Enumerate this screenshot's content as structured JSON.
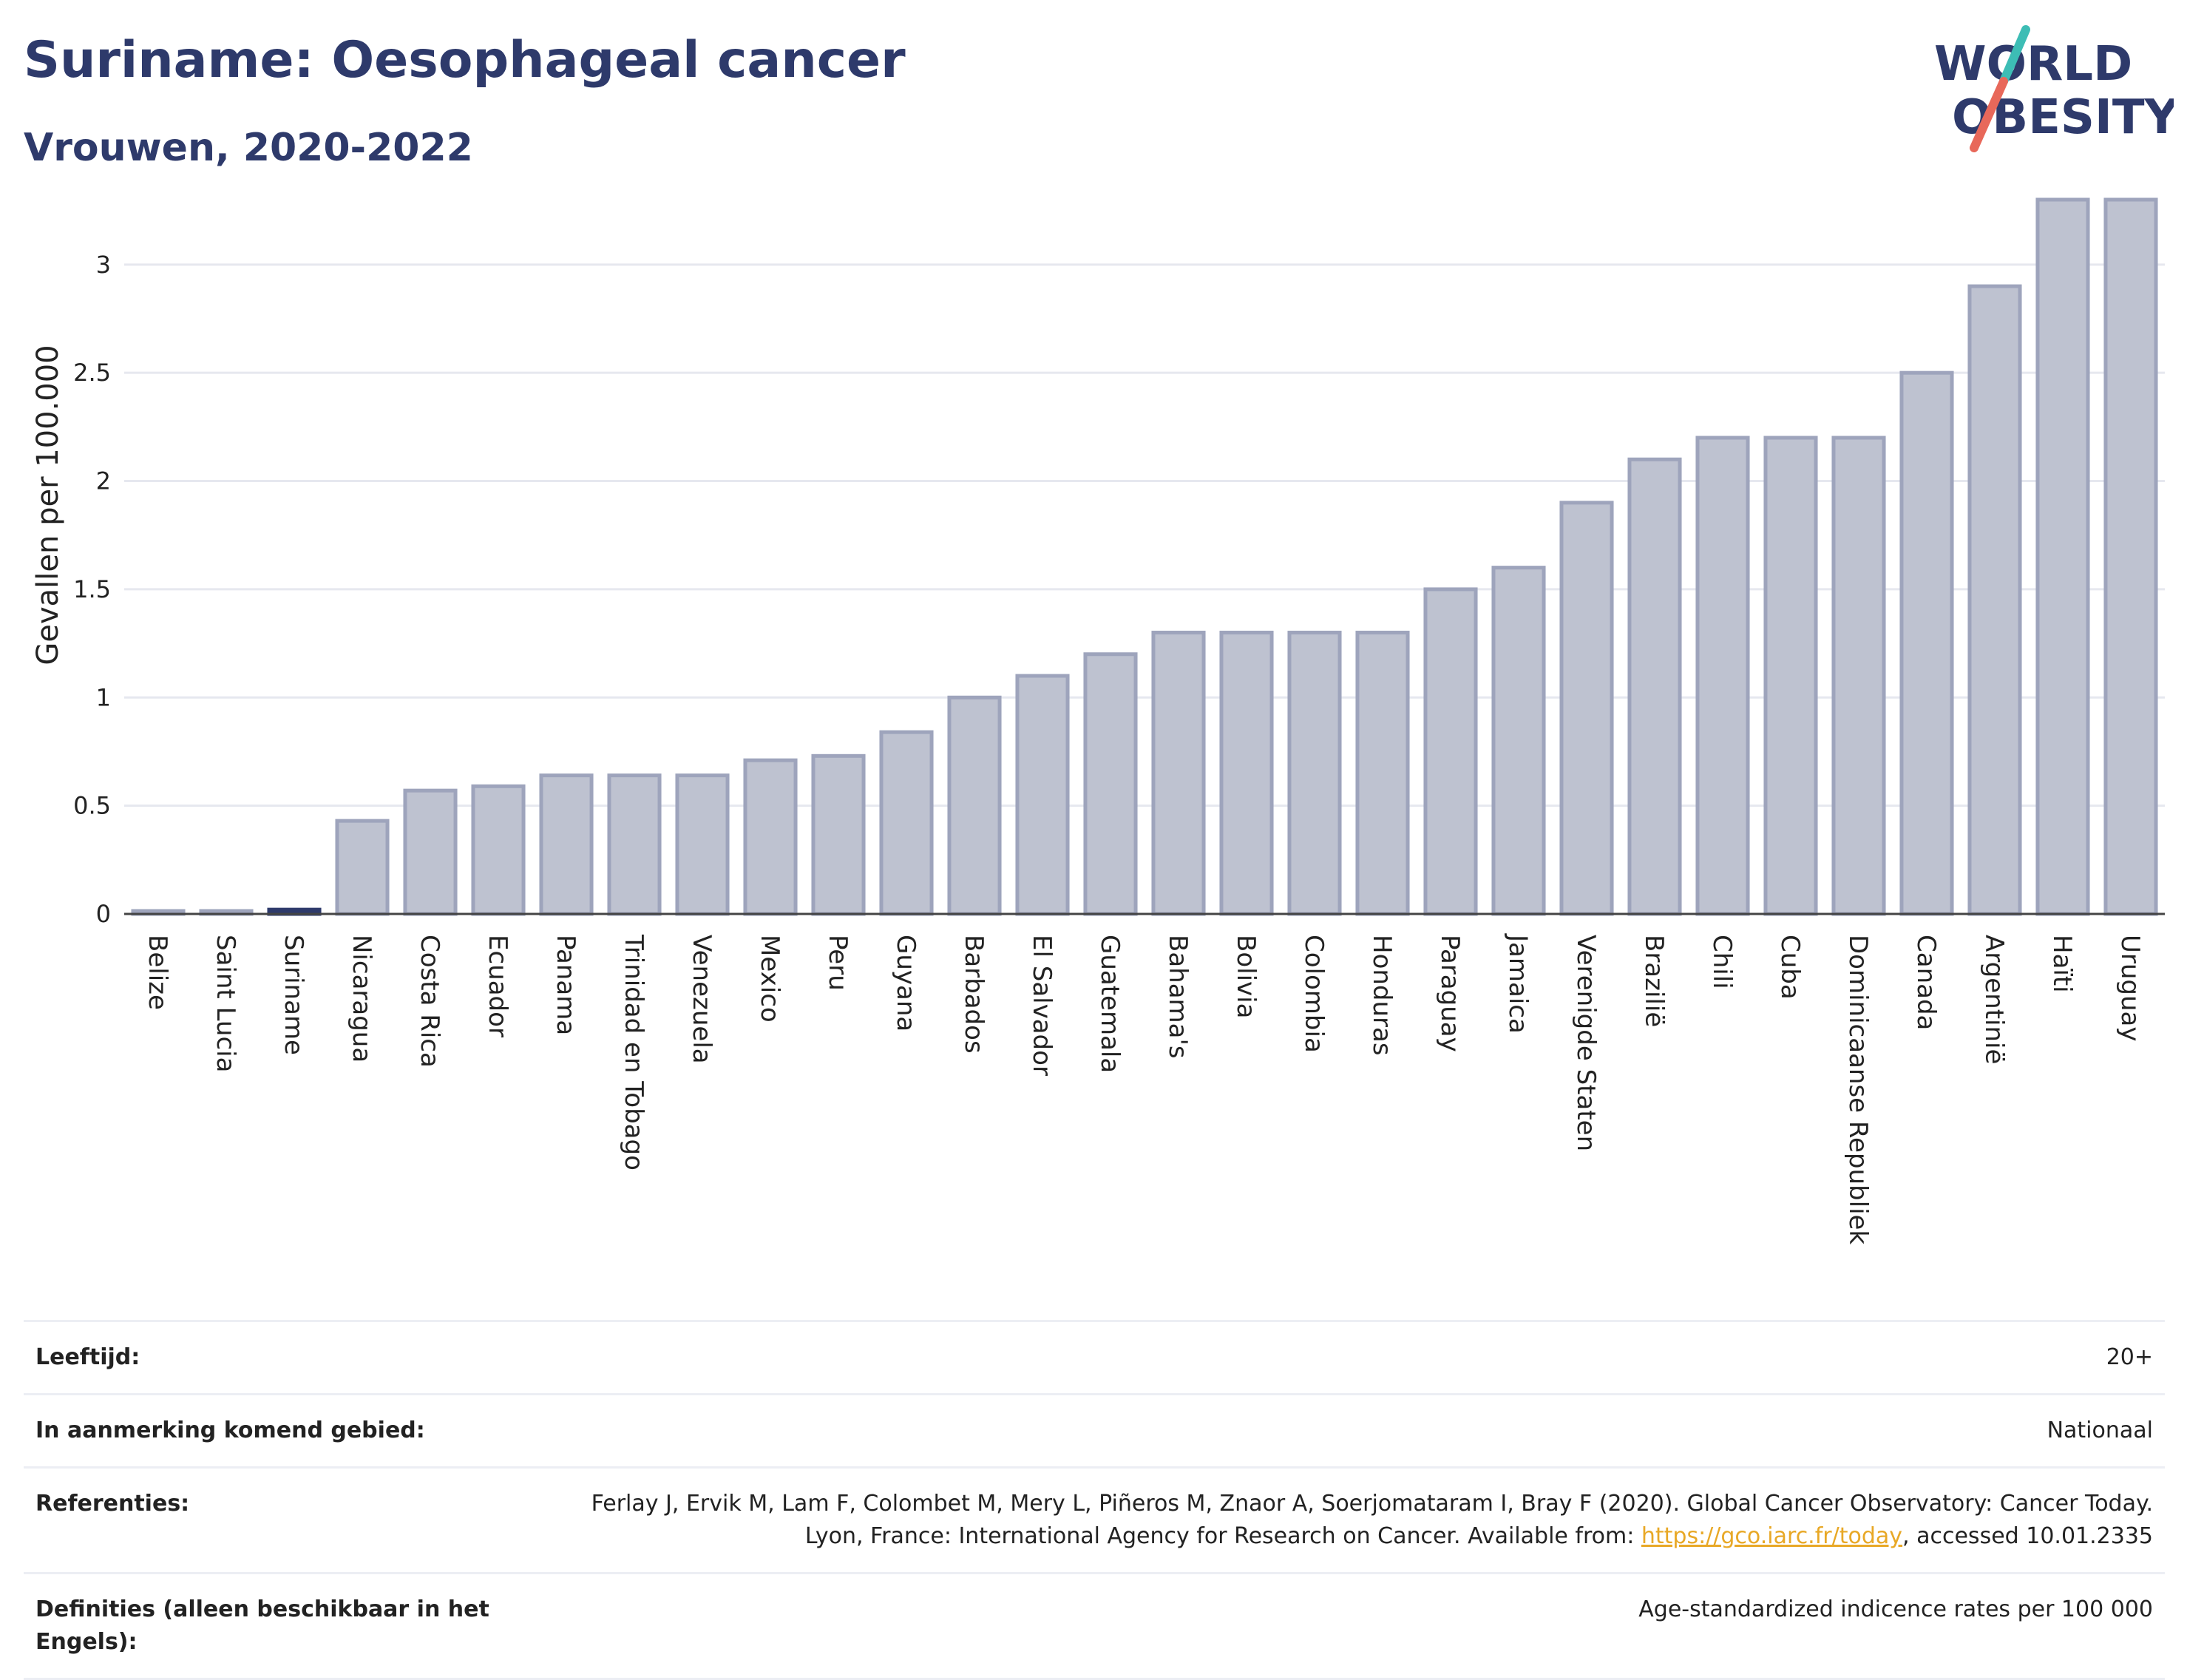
{
  "header": {
    "title": "Suriname: Oesophageal cancer",
    "subtitle": "Vrouwen, 2020-2022"
  },
  "logo": {
    "line1": "WORLD",
    "line2": "OBESITY",
    "text_color": "#2e3a6b",
    "accent_teal": "#3dbdb5",
    "accent_coral": "#e8685a"
  },
  "chart_data": {
    "type": "bar",
    "ylabel": "Gevallen per 100.000",
    "xlabel": "",
    "ylim": [
      0,
      3.3
    ],
    "yticks": [
      "0",
      "0.5",
      "1",
      "1.5",
      "2",
      "2.5",
      "3"
    ],
    "grid": true,
    "highlight": "Suriname",
    "colors": {
      "bar_fill": "#bec2d0",
      "bar_stroke": "#9ea4bc",
      "highlight_fill": "#2e3a6b"
    },
    "categories": [
      "Belize",
      "Saint Lucia",
      "Suriname",
      "Nicaragua",
      "Costa Rica",
      "Ecuador",
      "Panama",
      "Trinidad en Tobago",
      "Venezuela",
      "Mexico",
      "Peru",
      "Guyana",
      "Barbados",
      "El Salvador",
      "Guatemala",
      "Bahama's",
      "Bolivia",
      "Colombia",
      "Honduras",
      "Paraguay",
      "Jamaica",
      "Verenigde Staten",
      "Brazilië",
      "Chili",
      "Cuba",
      "Dominicaanse Republiek",
      "Canada",
      "Argentinië",
      "Haïti",
      "Uruguay"
    ],
    "values": [
      0.01,
      0.01,
      0.02,
      0.43,
      0.57,
      0.59,
      0.64,
      0.64,
      0.64,
      0.71,
      0.73,
      0.84,
      1.0,
      1.1,
      1.2,
      1.3,
      1.3,
      1.3,
      1.3,
      1.5,
      1.6,
      1.9,
      2.1,
      2.2,
      2.2,
      2.2,
      2.5,
      2.9,
      3.3,
      3.3
    ]
  },
  "meta": [
    {
      "key": "Leeftijd:",
      "value": "20+"
    },
    {
      "key": "In aanmerking komend gebied:",
      "value": "Nationaal"
    },
    {
      "key": "Referenties:",
      "value_before": "Ferlay J, Ervik M, Lam F, Colombet M, Mery L, Piñeros M, Znaor A, Soerjomataram I, Bray F (2020). Global Cancer Observatory: Cancer Today. Lyon, France: International Agency for Research on Cancer. Available from: ",
      "link": "https://gco.iarc.fr/today",
      "value_after": ", accessed 10.01.2335"
    },
    {
      "key": "Definities (alleen beschikbaar in het Engels):",
      "value": "Age-standardized indicence rates per 100 000"
    }
  ]
}
